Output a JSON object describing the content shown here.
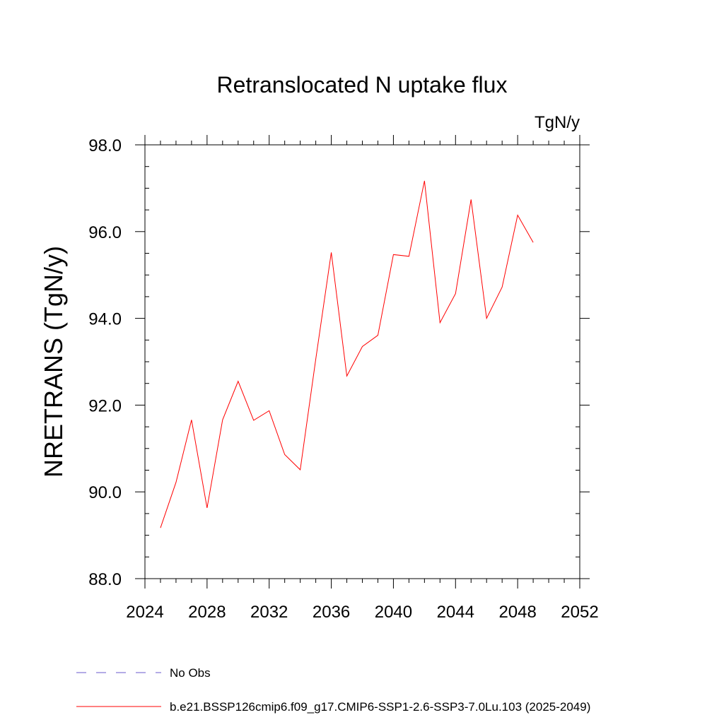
{
  "chart_data": {
    "type": "line",
    "title": "Retranslocated N uptake flux",
    "units": "TgN/y",
    "xlabel": "",
    "ylabel": "NRETRANS  (TgN/y)",
    "xlim": [
      2024,
      2052
    ],
    "ylim": [
      88.0,
      98.0
    ],
    "x_ticks": [
      2024,
      2028,
      2032,
      2036,
      2040,
      2044,
      2048,
      2052
    ],
    "x_tick_labels": [
      "2024",
      "2028",
      "2032",
      "2036",
      "2040",
      "2044",
      "2048",
      "2052"
    ],
    "y_ticks": [
      88.0,
      90.0,
      92.0,
      94.0,
      96.0,
      98.0
    ],
    "y_tick_labels": [
      "88.0",
      "90.0",
      "92.0",
      "94.0",
      "96.0",
      "98.0"
    ],
    "grid": false,
    "series": [
      {
        "name": "b.e21.BSSP126cmip6.f09_g17.CMIP6-SSP1-2.6-SSP3-7.0Lu.103 (2025-2049)",
        "color": "#ff0000",
        "x": [
          2025,
          2026,
          2027,
          2028,
          2029,
          2030,
          2031,
          2032,
          2033,
          2034,
          2035,
          2036,
          2037,
          2038,
          2039,
          2040,
          2041,
          2042,
          2043,
          2044,
          2045,
          2046,
          2047,
          2048,
          2049
        ],
        "y": [
          89.17,
          90.22,
          91.66,
          89.63,
          91.66,
          92.55,
          91.65,
          91.87,
          90.86,
          90.51,
          93.06,
          95.52,
          92.67,
          93.35,
          93.61,
          95.47,
          95.43,
          97.17,
          93.9,
          94.57,
          96.74,
          94.0,
          94.72,
          96.38,
          95.75
        ]
      }
    ],
    "legend": {
      "placement": "bottom",
      "entries": [
        {
          "label": "No Obs",
          "color": "#6a5acd",
          "style": "dashed"
        },
        {
          "label": "b.e21.BSSP126cmip6.f09_g17.CMIP6-SSP1-2.6-SSP3-7.0Lu.103 (2025-2049)",
          "color": "#ff0000",
          "style": "solid"
        }
      ]
    }
  }
}
